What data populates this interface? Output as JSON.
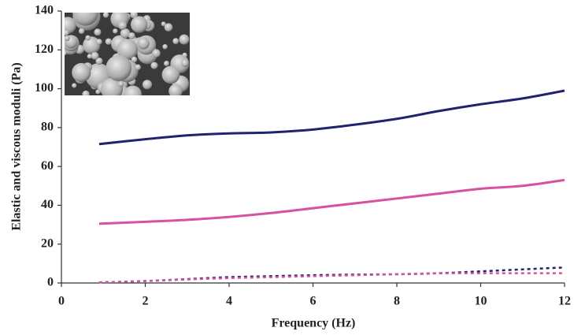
{
  "chart_data": {
    "type": "line",
    "x_label": "Frequency (Hz)",
    "y_label": "Elastic and viscous moduli (Pa)",
    "xlim": [
      0,
      12
    ],
    "xticks": [
      0,
      2,
      4,
      6,
      8,
      10,
      12
    ],
    "ylim": [
      0,
      140
    ],
    "yticks": [
      0,
      20,
      40,
      60,
      80,
      100,
      120,
      140
    ],
    "x": [
      0.9,
      2,
      3,
      4,
      5,
      6,
      7,
      8,
      9,
      10,
      11,
      12
    ],
    "series": [
      {
        "color": "#22226e",
        "style": "solid",
        "values": [
          71.5,
          74,
          76,
          77,
          77.5,
          79,
          81.5,
          84.5,
          88.5,
          92,
          95,
          99
        ]
      },
      {
        "color": "#d6529f",
        "style": "solid",
        "values": [
          30.5,
          31.5,
          32.5,
          34,
          36,
          38.5,
          41,
          43.5,
          46,
          48.5,
          50,
          53
        ]
      },
      {
        "color": "#22226e",
        "style": "dashed",
        "values": [
          0.3,
          1,
          2,
          3,
          3.5,
          4,
          4.3,
          4.5,
          5,
          6,
          7,
          8
        ]
      },
      {
        "color": "#d6529f",
        "style": "dashed",
        "values": [
          0.3,
          1,
          1.8,
          2.5,
          3,
          3.5,
          4,
          4.5,
          5,
          5,
          5,
          5
        ]
      }
    ]
  }
}
